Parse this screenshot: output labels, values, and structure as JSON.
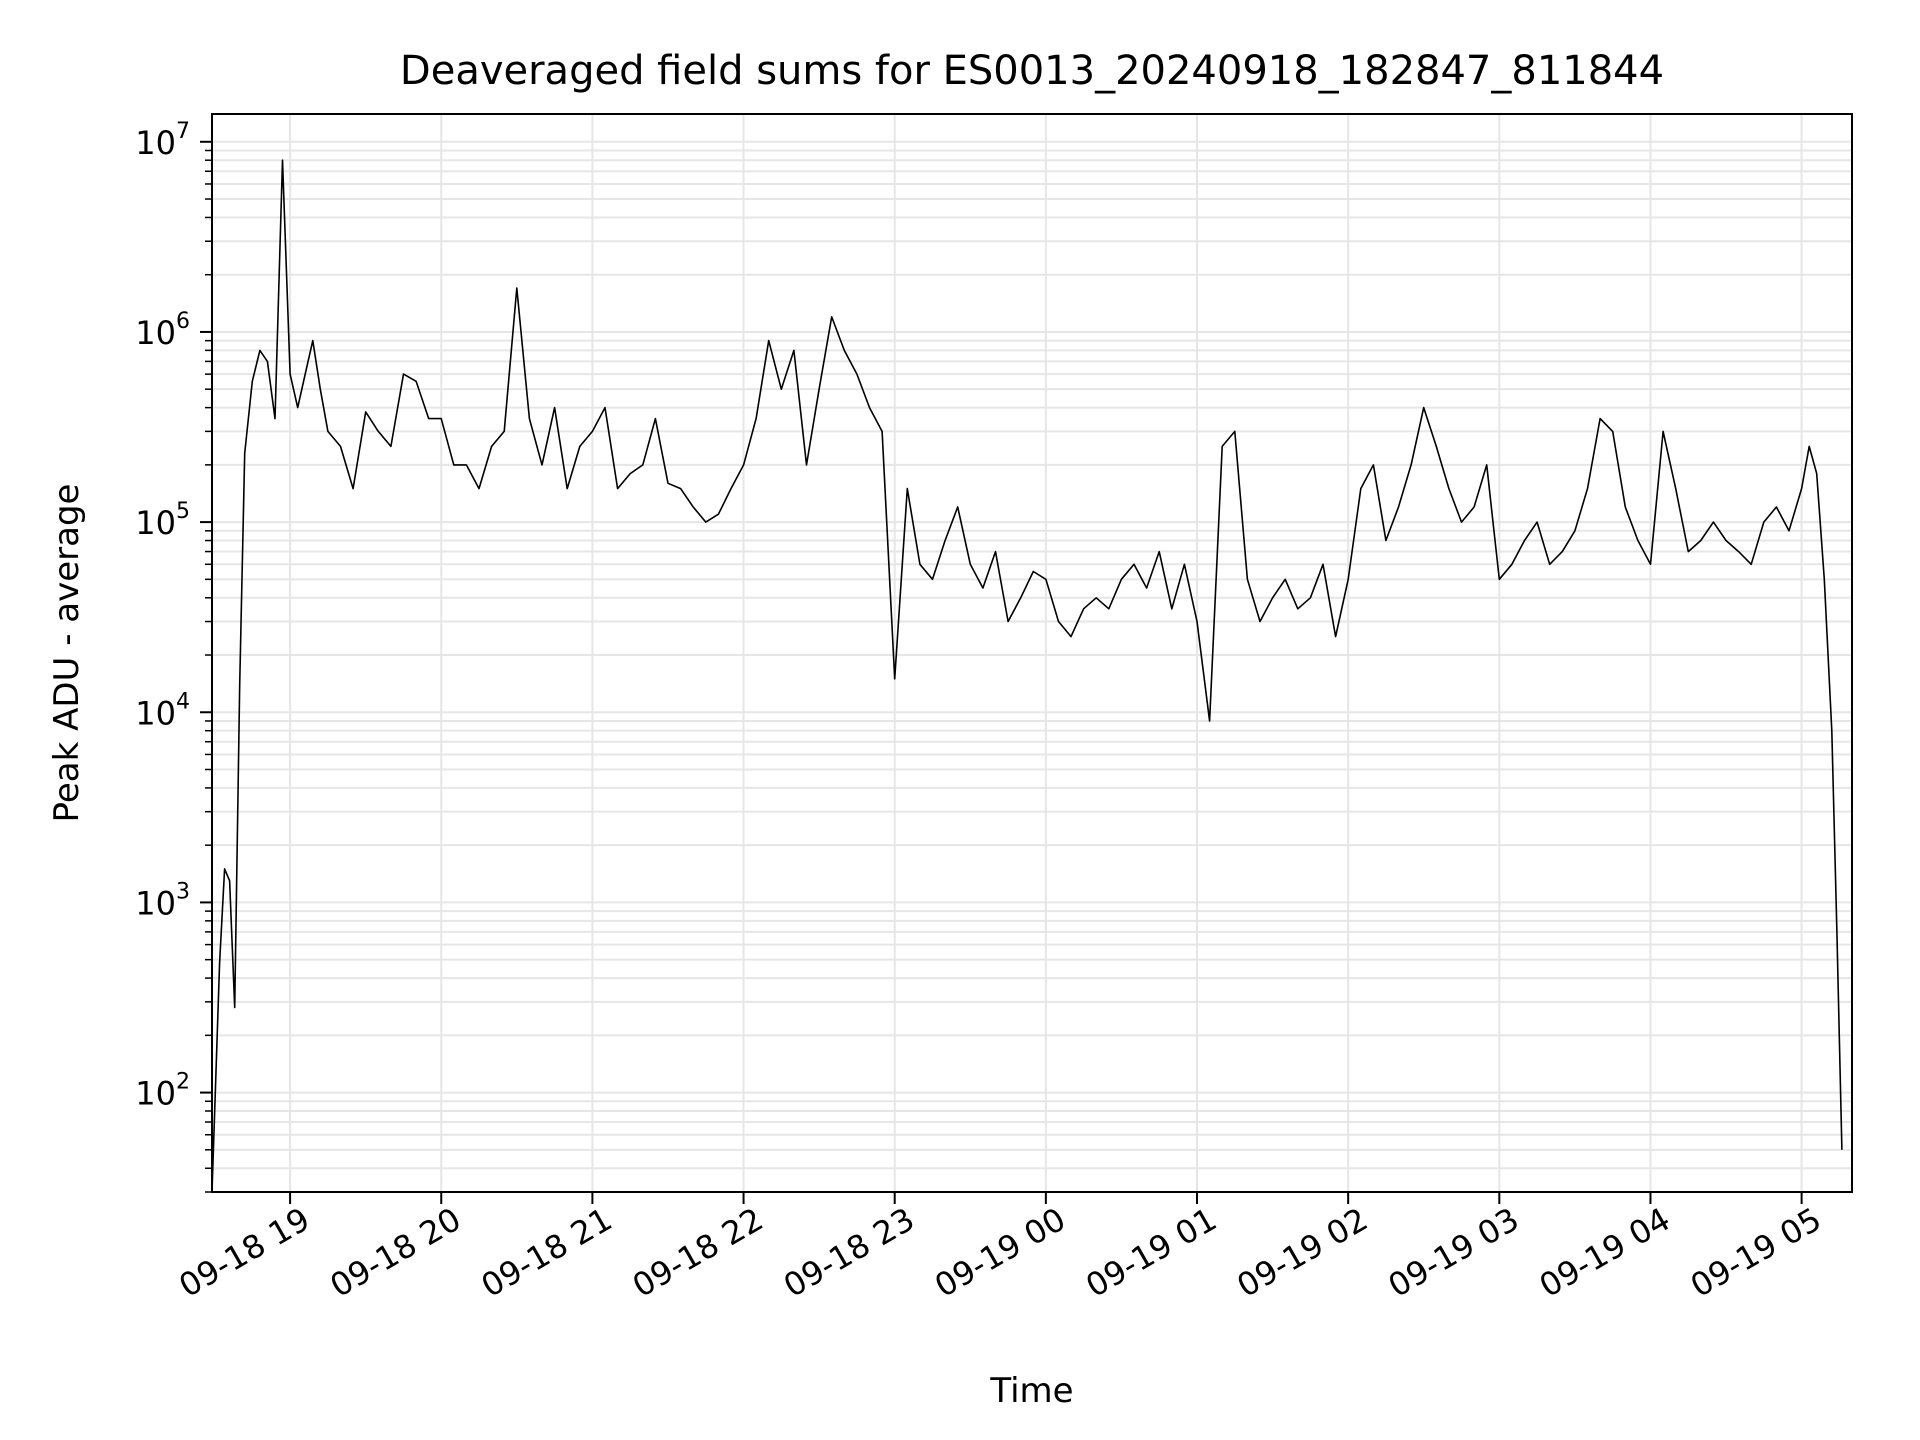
{
  "chart_data": {
    "type": "line",
    "title": "Deaveraged field sums for ES0013_20240918_182847_811844",
    "xlabel": "Time",
    "ylabel": "Peak ADU - average",
    "yscale": "log",
    "ylim": [
      30,
      14000000
    ],
    "xlim": [
      "09-18 18:29",
      "09-19 05:20"
    ],
    "grid": true,
    "series_color": "#000000",
    "x_ticks": [
      "09-18 19",
      "09-18 20",
      "09-18 21",
      "09-18 22",
      "09-18 23",
      "09-19 00",
      "09-19 01",
      "09-19 02",
      "09-19 03",
      "09-19 04",
      "09-19 05"
    ],
    "y_ticks": [
      {
        "value": 100,
        "base": "10",
        "exp": "2"
      },
      {
        "value": 1000,
        "base": "10",
        "exp": "3"
      },
      {
        "value": 10000,
        "base": "10",
        "exp": "4"
      },
      {
        "value": 100000,
        "base": "10",
        "exp": "5"
      },
      {
        "value": 1000000,
        "base": "10",
        "exp": "6"
      },
      {
        "value": 10000000,
        "base": "10",
        "exp": "7"
      }
    ],
    "series": [
      {
        "x": [
          "09-18 18:29",
          "09-18 18:32",
          "09-18 18:34",
          "09-18 18:36",
          "09-18 18:38",
          "09-18 18:40",
          "09-18 18:42",
          "09-18 18:45",
          "09-18 18:48",
          "09-18 18:51",
          "09-18 18:54",
          "09-18 18:57",
          "09-18 19:00",
          "09-18 19:03",
          "09-18 19:06",
          "09-18 19:09",
          "09-18 19:12",
          "09-18 19:15",
          "09-18 19:20",
          "09-18 19:25",
          "09-18 19:30",
          "09-18 19:35",
          "09-18 19:40",
          "09-18 19:45",
          "09-18 19:50",
          "09-18 19:55",
          "09-18 20:00",
          "09-18 20:05",
          "09-18 20:10",
          "09-18 20:15",
          "09-18 20:20",
          "09-18 20:25",
          "09-18 20:30",
          "09-18 20:35",
          "09-18 20:40",
          "09-18 20:45",
          "09-18 20:50",
          "09-18 20:55",
          "09-18 21:00",
          "09-18 21:05",
          "09-18 21:10",
          "09-18 21:15",
          "09-18 21:20",
          "09-18 21:25",
          "09-18 21:30",
          "09-18 21:35",
          "09-18 21:40",
          "09-18 21:45",
          "09-18 21:50",
          "09-18 21:55",
          "09-18 22:00",
          "09-18 22:05",
          "09-18 22:10",
          "09-18 22:15",
          "09-18 22:20",
          "09-18 22:25",
          "09-18 22:30",
          "09-18 22:35",
          "09-18 22:40",
          "09-18 22:45",
          "09-18 22:50",
          "09-18 22:55",
          "09-18 23:00",
          "09-18 23:05",
          "09-18 23:10",
          "09-18 23:15",
          "09-18 23:20",
          "09-18 23:25",
          "09-18 23:30",
          "09-18 23:35",
          "09-18 23:40",
          "09-18 23:45",
          "09-18 23:50",
          "09-18 23:55",
          "09-19 00:00",
          "09-19 00:05",
          "09-19 00:10",
          "09-19 00:15",
          "09-19 00:20",
          "09-19 00:25",
          "09-19 00:30",
          "09-19 00:35",
          "09-19 00:40",
          "09-19 00:45",
          "09-19 00:50",
          "09-19 00:55",
          "09-19 01:00",
          "09-19 01:05",
          "09-19 01:10",
          "09-19 01:15",
          "09-19 01:20",
          "09-19 01:25",
          "09-19 01:30",
          "09-19 01:35",
          "09-19 01:40",
          "09-19 01:45",
          "09-19 01:50",
          "09-19 01:55",
          "09-19 02:00",
          "09-19 02:05",
          "09-19 02:10",
          "09-19 02:15",
          "09-19 02:20",
          "09-19 02:25",
          "09-19 02:30",
          "09-19 02:35",
          "09-19 02:40",
          "09-19 02:45",
          "09-19 02:50",
          "09-19 02:55",
          "09-19 03:00",
          "09-19 03:05",
          "09-19 03:10",
          "09-19 03:15",
          "09-19 03:20",
          "09-19 03:25",
          "09-19 03:30",
          "09-19 03:35",
          "09-19 03:40",
          "09-19 03:45",
          "09-19 03:50",
          "09-19 03:55",
          "09-19 04:00",
          "09-19 04:05",
          "09-19 04:10",
          "09-19 04:15",
          "09-19 04:20",
          "09-19 04:25",
          "09-19 04:30",
          "09-19 04:35",
          "09-19 04:40",
          "09-19 04:45",
          "09-19 04:50",
          "09-19 04:55",
          "09-19 05:00",
          "09-19 05:03",
          "09-19 05:06",
          "09-19 05:09",
          "09-19 05:12",
          "09-19 05:14",
          "09-19 05:16"
        ],
        "y": [
          30,
          480,
          1500,
          1300,
          280,
          14000,
          230000,
          550000,
          800000,
          700000,
          350000,
          8000000,
          600000,
          400000,
          600000,
          900000,
          500000,
          300000,
          250000,
          150000,
          380000,
          300000,
          250000,
          600000,
          550000,
          350000,
          350000,
          200000,
          200000,
          150000,
          250000,
          300000,
          1700000,
          350000,
          200000,
          400000,
          150000,
          250000,
          300000,
          400000,
          150000,
          180000,
          200000,
          350000,
          160000,
          150000,
          120000,
          100000,
          110000,
          150000,
          200000,
          350000,
          900000,
          500000,
          800000,
          200000,
          500000,
          1200000,
          800000,
          600000,
          400000,
          300000,
          15000,
          150000,
          60000,
          50000,
          80000,
          120000,
          60000,
          45000,
          70000,
          30000,
          40000,
          55000,
          50000,
          30000,
          25000,
          35000,
          40000,
          35000,
          50000,
          60000,
          45000,
          70000,
          35000,
          60000,
          30000,
          9000,
          250000,
          300000,
          50000,
          30000,
          40000,
          50000,
          35000,
          40000,
          60000,
          25000,
          50000,
          150000,
          200000,
          80000,
          120000,
          200000,
          400000,
          250000,
          150000,
          100000,
          120000,
          200000,
          50000,
          60000,
          80000,
          100000,
          60000,
          70000,
          90000,
          150000,
          350000,
          300000,
          120000,
          80000,
          60000,
          300000,
          150000,
          70000,
          80000,
          100000,
          80000,
          70000,
          60000,
          100000,
          120000,
          90000,
          150000,
          250000,
          180000,
          50000,
          8000,
          700,
          50
        ]
      }
    ]
  }
}
